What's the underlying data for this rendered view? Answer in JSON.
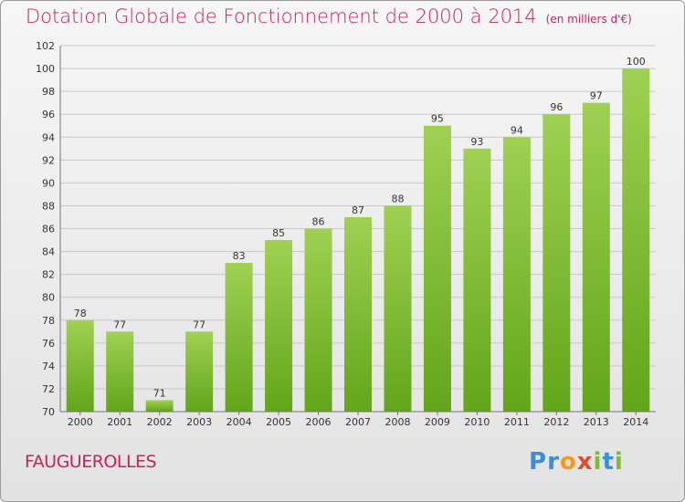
{
  "title": "Dotation Globale de Fonctionnement de 2000 à 2014",
  "unit_label": "(en milliers d'€)",
  "commune": "FAUGUEROLLES",
  "logo": {
    "text": "Proxiti",
    "letters": [
      {
        "char": "P",
        "color": "#3a8fd6"
      },
      {
        "char": "r",
        "color": "#3a8fd6"
      },
      {
        "char": "o",
        "color": "#f39a1e"
      },
      {
        "char": "x",
        "color": "#e34a2b"
      },
      {
        "char": "i",
        "color": "#7bbd2a"
      },
      {
        "char": "t",
        "color": "#3a8fd6"
      },
      {
        "char": "i",
        "color": "#7bbd2a"
      }
    ]
  },
  "colors": {
    "title": "#c5245a",
    "bar_light": "#9fd152",
    "bar_dark": "#62a51a",
    "grid": "#c8c8c8"
  },
  "chart_data": {
    "type": "bar",
    "categories": [
      "2000",
      "2001",
      "2002",
      "2003",
      "2004",
      "2005",
      "2006",
      "2007",
      "2008",
      "2009",
      "2010",
      "2011",
      "2012",
      "2013",
      "2014"
    ],
    "values": [
      78,
      77,
      71,
      77,
      83,
      85,
      86,
      87,
      88,
      95,
      93,
      94,
      96,
      97,
      100
    ],
    "ylim": [
      70,
      102
    ],
    "yticks": [
      70,
      72,
      74,
      76,
      78,
      80,
      82,
      84,
      86,
      88,
      90,
      92,
      94,
      96,
      98,
      100,
      102
    ],
    "grid": true
  }
}
